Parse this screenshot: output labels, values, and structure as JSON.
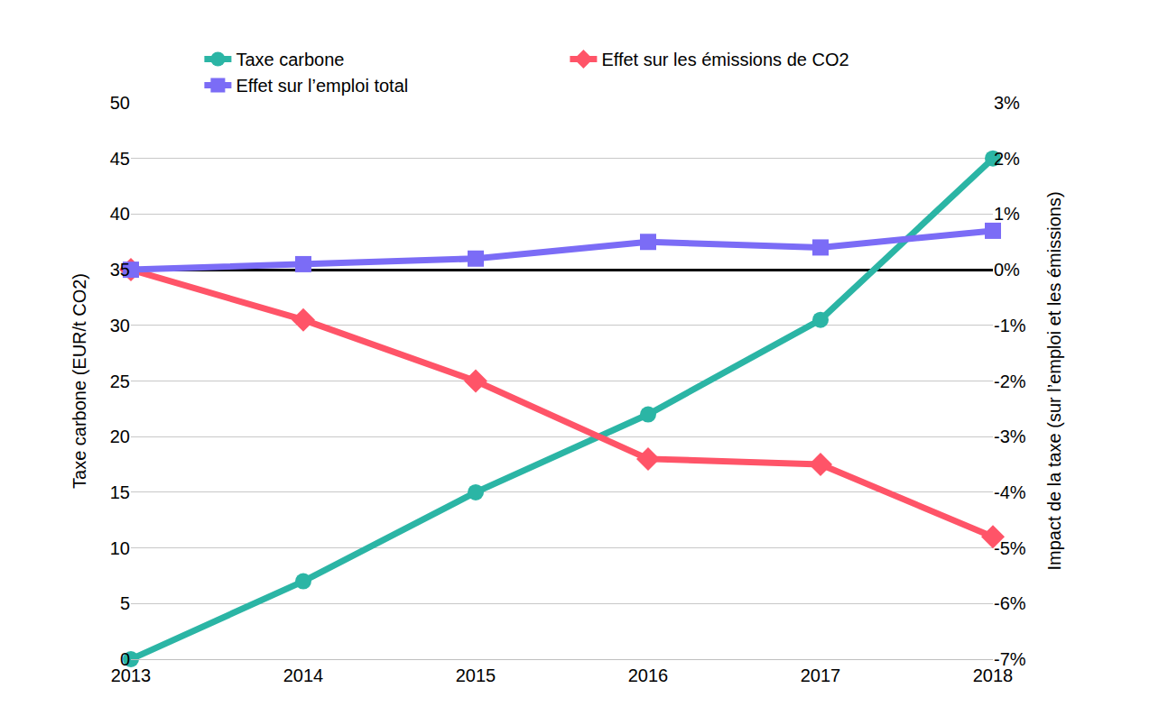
{
  "chart_data": {
    "type": "line",
    "x": [
      2013,
      2014,
      2015,
      2016,
      2017,
      2018
    ],
    "xlim": [
      2013,
      2018
    ],
    "xticks": [
      2013,
      2014,
      2015,
      2016,
      2017,
      2018
    ],
    "y_label": "Taxe carbone (EUR/t CO2)",
    "y2_label": "Impact de la taxe (sur l’emploi et les émissions)",
    "ylim": [
      0,
      50
    ],
    "yticks": [
      0,
      5,
      10,
      15,
      20,
      25,
      30,
      35,
      40,
      45,
      50
    ],
    "y2lim": [
      -7,
      3
    ],
    "y2ticks": [
      {
        "value": -7,
        "label": "-7%"
      },
      {
        "value": -6,
        "label": "-6%"
      },
      {
        "value": -5,
        "label": "-5%"
      },
      {
        "value": -4,
        "label": "-4%"
      },
      {
        "value": -3,
        "label": "-3%"
      },
      {
        "value": -2,
        "label": "-2%"
      },
      {
        "value": -1,
        "label": "-1%"
      },
      {
        "value": 0,
        "label": "0%"
      },
      {
        "value": 1,
        "label": "1%"
      },
      {
        "value": 2,
        "label": "2%"
      },
      {
        "value": 3,
        "label": "3%"
      }
    ],
    "grid": true,
    "legend": "top",
    "series": [
      {
        "name": "Taxe carbone",
        "color": "#2bb5a5",
        "marker": "circle",
        "values": [
          0,
          7,
          15,
          22,
          30.5,
          45
        ]
      },
      {
        "name": "Effet sur les émissions de CO2",
        "color": "#ff5468",
        "marker": "diamond",
        "axis": "y2",
        "values": [
          0,
          -0.9,
          -2.0,
          -3.4,
          -3.5,
          -4.8
        ]
      },
      {
        "name": "Effet sur l’emploi total",
        "color": "#7b6cf6",
        "marker": "square",
        "axis": "y2",
        "values": [
          0,
          0.1,
          0.2,
          0.5,
          0.4,
          0.7
        ]
      }
    ]
  }
}
